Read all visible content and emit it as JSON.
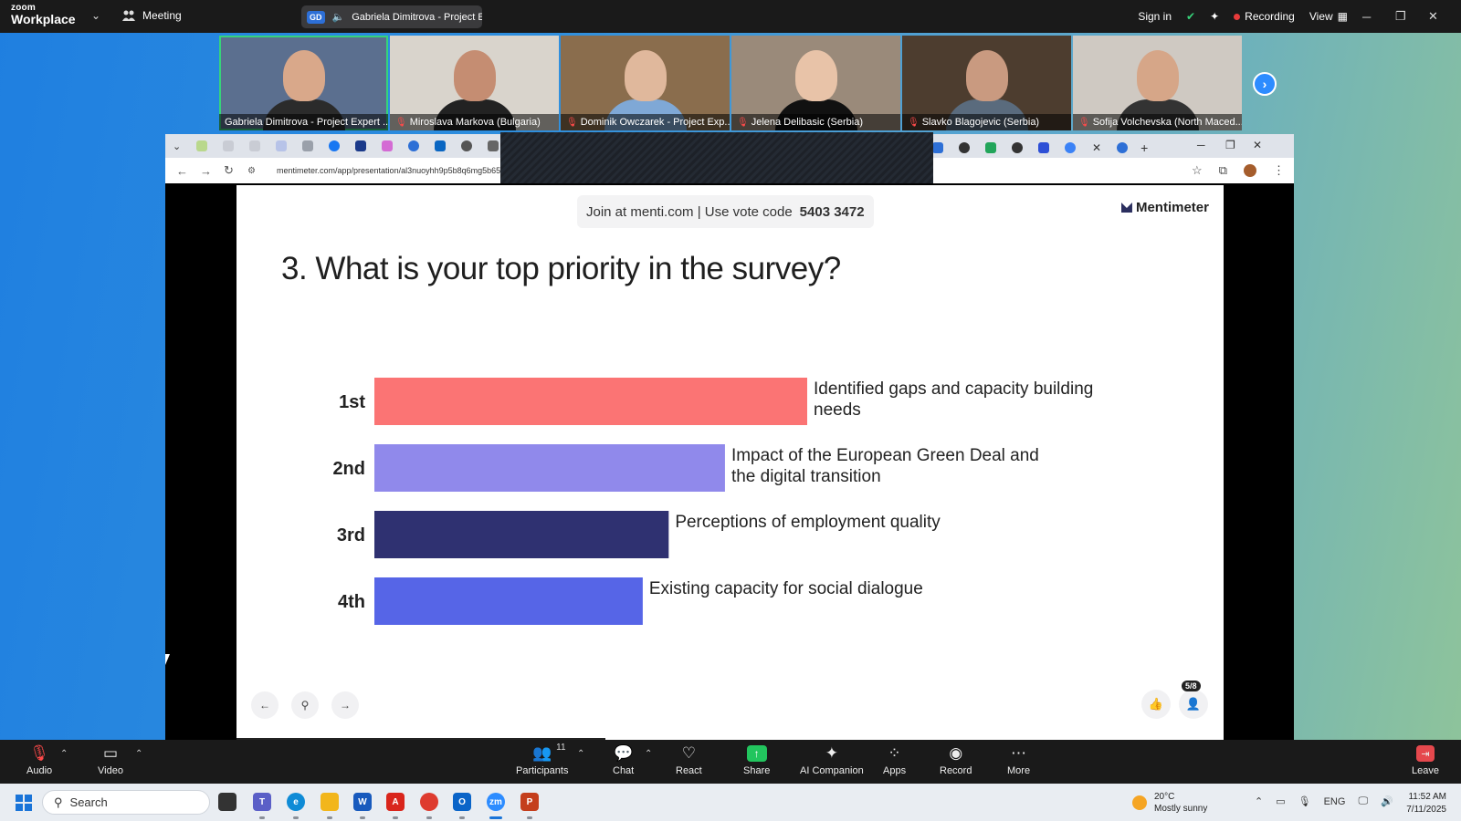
{
  "zoom": {
    "logo_small": "zoom",
    "logo_big": "Workplace",
    "meeting_label": "Meeting",
    "speaker_initials": "GD",
    "speaker_text": "Gabriela Dimitrova - Project E",
    "sign_in": "Sign in",
    "recording": "Recording",
    "view": "View"
  },
  "participants": [
    {
      "name": "Gabriela Dimitrova - Project Expert ...",
      "muted": false,
      "active": true
    },
    {
      "name": "Miroslava Markova (Bulgaria)",
      "muted": true,
      "active": false
    },
    {
      "name": "Dominik Owczarek - Project Exp...",
      "muted": true,
      "active": false
    },
    {
      "name": "Jelena Delibasic (Serbia)",
      "muted": true,
      "active": false
    },
    {
      "name": "Slavko Blagojevic (Serbia)",
      "muted": true,
      "active": false
    },
    {
      "name": "Sofija Volchevska (North Maced...",
      "muted": true,
      "active": false
    }
  ],
  "browser": {
    "url": "mentimeter.com/app/presentation/al3nuoyhh9p5b8q6mg5b65ipoa"
  },
  "slide": {
    "join_text": "Join at menti.com | Use vote code",
    "vote_code": "5403 3472",
    "brand": "Mentimeter",
    "question": "3. What is your top priority in the survey?",
    "count_badge": "5/8"
  },
  "chart_data": {
    "type": "bar",
    "orientation": "horizontal",
    "categories": [
      "1st",
      "2nd",
      "3rd",
      "4th"
    ],
    "labels": [
      [
        "Identified gaps and capacity building",
        "needs"
      ],
      [
        "Impact of the European Green Deal and",
        "the digital transition"
      ],
      [
        "Perceptions of employment quality"
      ],
      [
        "Existing capacity for social dialogue"
      ]
    ],
    "values": [
      1.0,
      0.81,
      0.68,
      0.62
    ],
    "colors": [
      "#fb7474",
      "#9089eb",
      "#2f3171",
      "#5665e7"
    ]
  },
  "toolbar": {
    "audio": "Audio",
    "video": "Video",
    "participants": "Participants",
    "participants_count": "11",
    "chat": "Chat",
    "react": "React",
    "share": "Share",
    "ai_companion": "AI Companion",
    "apps": "Apps",
    "record": "Record",
    "more": "More",
    "leave": "Leave"
  },
  "taskbar": {
    "search": "Search",
    "temp": "20°C",
    "weather": "Mostly sunny",
    "lang": "ENG",
    "time": "11:52 AM",
    "date": "7/11/2025"
  }
}
